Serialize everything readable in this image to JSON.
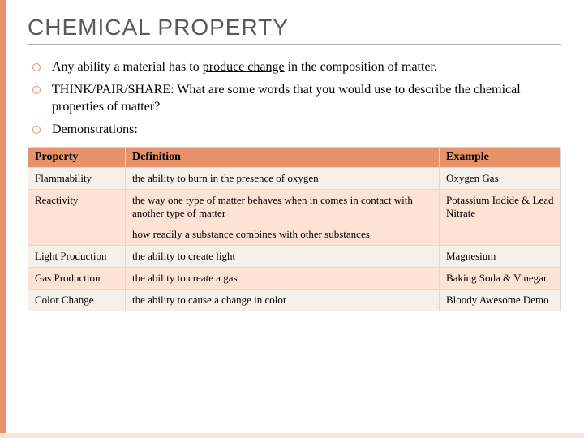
{
  "title": "CHEMICAL PROPERTY",
  "title_fontsize": 28,
  "title_color": "#595959",
  "accent_color": "#e8926a",
  "alt_row_color": "#fce3d4",
  "base_row_color": "#f6f0ea",
  "border_color": "#d9d9d9",
  "bullets_fontsize": 16,
  "bullets": [
    {
      "pre": "Any ability a material has to ",
      "under": "produce change",
      "post": " in the composition of matter."
    },
    {
      "pre": "THINK/PAIR/SHARE:  What are some words that you would use to describe the chemical properties of matter?",
      "under": "",
      "post": ""
    },
    {
      "pre": "Demonstrations:",
      "under": "",
      "post": ""
    }
  ],
  "table": {
    "header_fontsize": 14,
    "cell_fontsize": 13,
    "columns": [
      "Property",
      "Definition",
      "Example"
    ],
    "rows": [
      {
        "property": "Flammability",
        "definition": "the ability to burn in the presence of oxygen",
        "definition_extra": "",
        "example": "Oxygen Gas"
      },
      {
        "property": "Reactivity",
        "definition": "the way one type of matter behaves when in comes in contact with another type of matter",
        "definition_extra": "how readily a substance combines with other substances",
        "example": "Potassium Iodide & Lead Nitrate"
      },
      {
        "property": "Light Production",
        "definition": "the ability to create light",
        "definition_extra": "",
        "example": "Magnesium"
      },
      {
        "property": "Gas Production",
        "definition": "the ability to create a gas",
        "definition_extra": "",
        "example": "Baking Soda & Vinegar"
      },
      {
        "property": "Color Change",
        "definition": "the ability to cause a change in color",
        "definition_extra": "",
        "example": "Bloody Awesome Demo"
      }
    ]
  }
}
